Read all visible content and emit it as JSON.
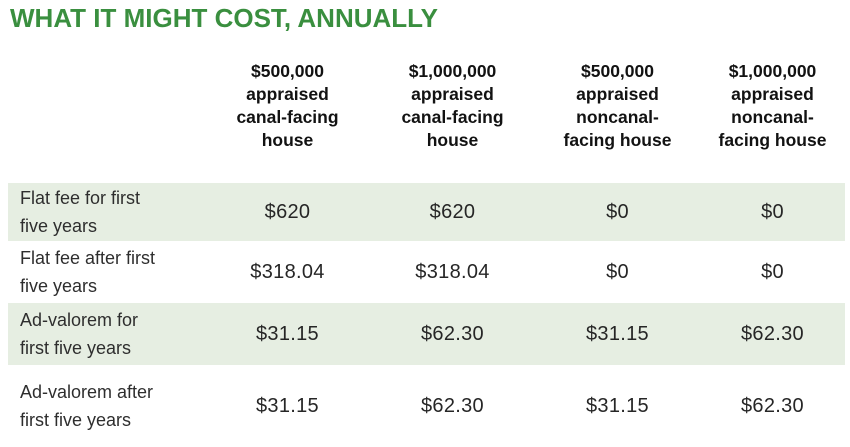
{
  "title": "WHAT IT MIGHT COST, ANNUALLY",
  "colors": {
    "title_green": "#3a8f3f",
    "row_band_green": "#e6eee2",
    "header_text": "#121212",
    "body_text": "#2e2e2e"
  },
  "table": {
    "column_headers": [
      "$500,000\nappraised\ncanal-facing\nhouse",
      "$1,000,000\nappraised\ncanal-facing\nhouse",
      "$500,000\nappraised\nnoncanal-\nfacing house",
      "$1,000,000\nappraised\nnoncanal-\nfacing house"
    ],
    "rows": [
      {
        "label": "Flat fee for first\nfive years",
        "values": [
          "$620",
          "$620",
          "$0",
          "$0"
        ]
      },
      {
        "label": "Flat fee after first\nfive years",
        "values": [
          "$318.04",
          "$318.04",
          "$0",
          "$0"
        ]
      },
      {
        "label": "Ad-valorem for\nfirst five years",
        "values": [
          "$31.15",
          "$62.30",
          "$31.15",
          "$62.30"
        ]
      },
      {
        "label": "Ad-valorem after\nfirst five years",
        "values": [
          "$31.15",
          "$62.30",
          "$31.15",
          "$62.30"
        ]
      }
    ]
  },
  "chart_data": {
    "type": "table",
    "title": "WHAT IT MIGHT COST, ANNUALLY",
    "columns": [
      "$500,000 appraised canal-facing house",
      "$1,000,000 appraised canal-facing house",
      "$500,000 appraised noncanal-facing house",
      "$1,000,000 appraised noncanal-facing house"
    ],
    "rows": [
      {
        "label": "Flat fee for first five years",
        "values": [
          620,
          620,
          0,
          0
        ]
      },
      {
        "label": "Flat fee after first five years",
        "values": [
          318.04,
          318.04,
          0,
          0
        ]
      },
      {
        "label": "Ad-valorem for first five years",
        "values": [
          31.15,
          62.3,
          31.15,
          62.3
        ]
      },
      {
        "label": "Ad-valorem after first five years",
        "values": [
          31.15,
          62.3,
          31.15,
          62.3
        ]
      }
    ]
  }
}
